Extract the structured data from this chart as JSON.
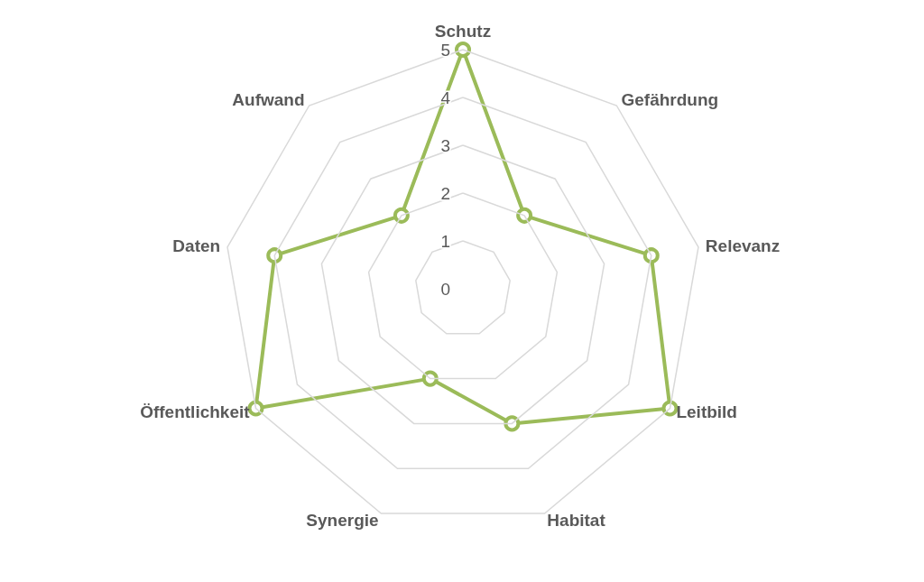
{
  "chart_data": {
    "type": "radar",
    "categories": [
      "Schutz",
      "Gefährdung",
      "Relevanz",
      "Leitbild",
      "Habitat",
      "Synergie",
      "Öffentlichkeit",
      "Daten",
      "Aufwand"
    ],
    "series": [
      {
        "color": "#9bbb59",
        "values": [
          5,
          2,
          4,
          5,
          3,
          2,
          5,
          4,
          2
        ]
      }
    ],
    "ylim": [
      0,
      5
    ],
    "yticks": [
      0,
      1,
      2,
      3,
      4,
      5
    ],
    "grid": true,
    "marker": "circle"
  }
}
